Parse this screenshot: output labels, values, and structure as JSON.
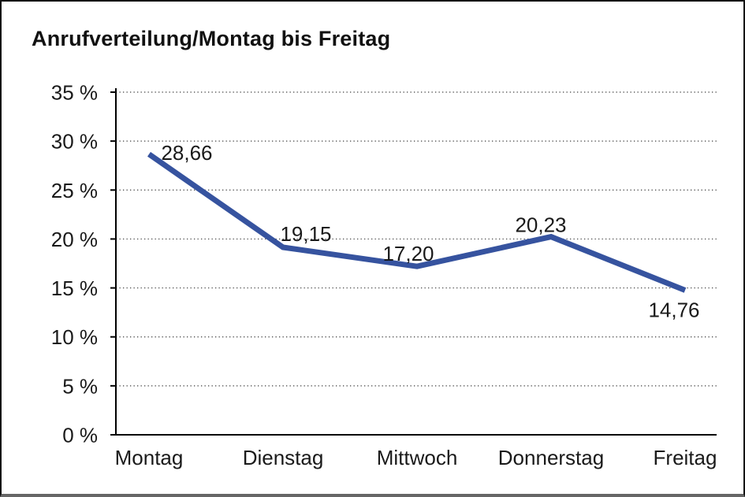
{
  "window": {
    "background": "#ffffff",
    "frame_border_color": "#111111",
    "frame_bottom_edge_color": "#666666"
  },
  "chart_data": {
    "type": "line",
    "title": "Anrufverteilung/Montag bis Freitag",
    "categories": [
      "Montag",
      "Dienstag",
      "Mittwoch",
      "Donnerstag",
      "Freitag"
    ],
    "values": [
      28.66,
      19.15,
      17.2,
      20.23,
      14.76
    ],
    "point_labels": [
      "28,66",
      "19,15",
      "17,20",
      "20,23",
      "14,76"
    ],
    "y_ticks": [
      "35 %",
      "30 %",
      "25 %",
      "20 %",
      "15 %",
      "10 %",
      "5 %",
      "0 %"
    ],
    "ylim": [
      0,
      35
    ],
    "y_tick_step": 5,
    "xlabel": "",
    "ylabel": "",
    "grid": "horizontal-dotted",
    "legend": "none",
    "line_color": "#36539F",
    "text_color": "#1a1a1a"
  }
}
